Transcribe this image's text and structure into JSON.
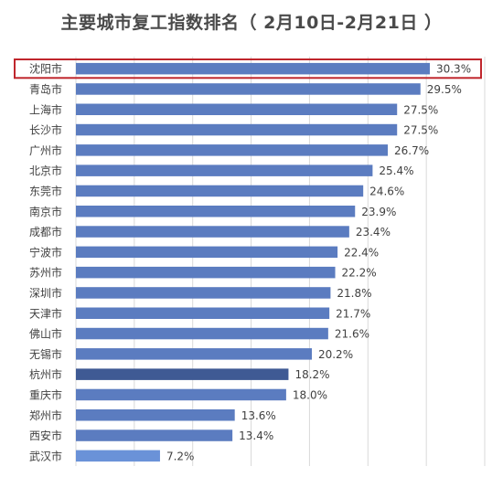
{
  "chart_data": {
    "type": "bar",
    "orientation": "horizontal",
    "title": "主要城市复工指数排名（ 2月10日-2月21日 ）",
    "xlabel": "",
    "ylabel": "",
    "xlim": [
      0,
      35
    ],
    "grid": true,
    "highlighted_category": "沈阳市",
    "highlight_color": "#c0262c",
    "bar_color": "#5b7cc0",
    "categories": [
      "沈阳市",
      "青岛市",
      "上海市",
      "长沙市",
      "广州市",
      "北京市",
      "东莞市",
      "南京市",
      "成都市",
      "宁波市",
      "苏州市",
      "深圳市",
      "天津市",
      "佛山市",
      "无锡市",
      "杭州市",
      "重庆市",
      "郑州市",
      "西安市",
      "武汉市"
    ],
    "values": [
      30.3,
      29.5,
      27.5,
      27.5,
      26.7,
      25.4,
      24.6,
      23.9,
      23.4,
      22.4,
      22.2,
      21.8,
      21.7,
      21.6,
      20.2,
      18.2,
      18.0,
      13.6,
      13.4,
      7.2
    ],
    "value_labels": [
      "30.3%",
      "29.5%",
      "27.5%",
      "27.5%",
      "26.7%",
      "25.4%",
      "24.6%",
      "23.9%",
      "23.4%",
      "22.4%",
      "22.2%",
      "21.8%",
      "21.7%",
      "21.6%",
      "20.2%",
      "18.2%",
      "18.0%",
      "13.6%",
      "13.4%",
      "7.2%"
    ],
    "bar_colors": [
      "#5b7cc0",
      "#5b7cc0",
      "#5b7cc0",
      "#5b7cc0",
      "#5b7cc0",
      "#5b7cc0",
      "#5b7cc0",
      "#5b7cc0",
      "#5b7cc0",
      "#5b7cc0",
      "#5b7cc0",
      "#5b7cc0",
      "#5b7cc0",
      "#5b7cc0",
      "#5b7cc0",
      "#3f5a94",
      "#5b7cc0",
      "#5b7cc0",
      "#5b7cc0",
      "#6a92d8"
    ]
  }
}
